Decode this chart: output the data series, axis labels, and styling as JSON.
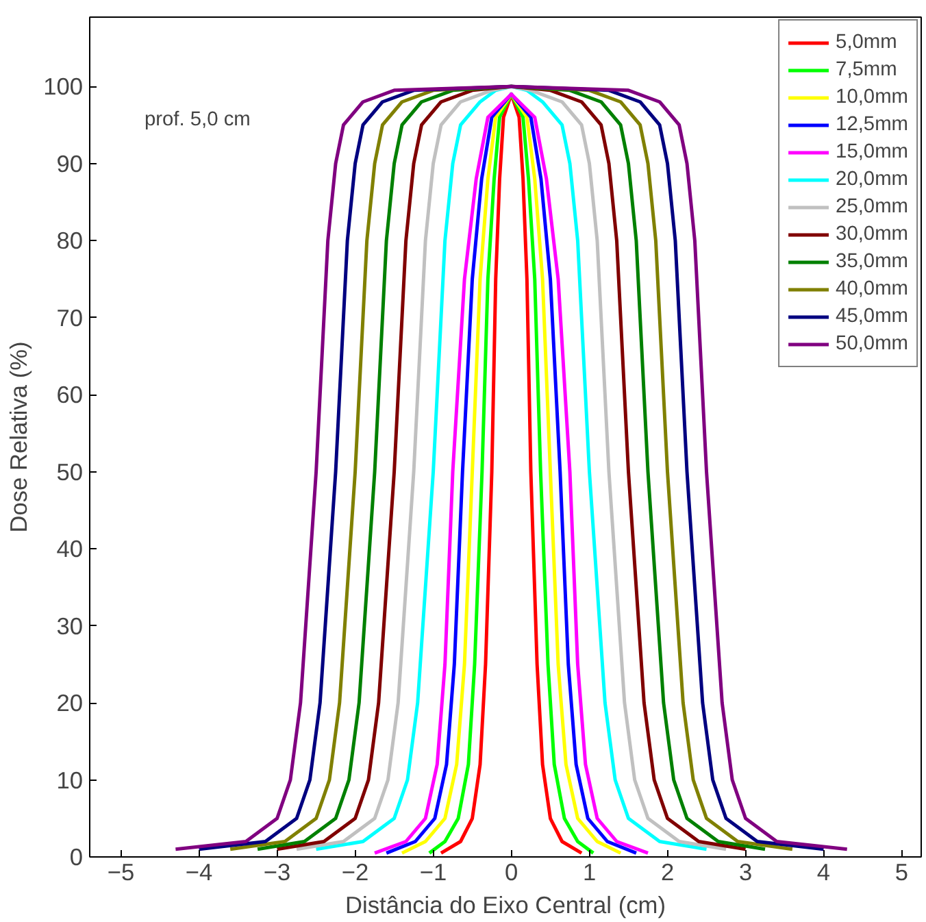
{
  "chart_data": {
    "type": "line",
    "xlabel": "Distância do Eixo Central (cm)",
    "ylabel": "Dose Relativa (%)",
    "annotations": [
      "prof. 5,0 cm"
    ],
    "xlim": [
      -5.4,
      5.25
    ],
    "ylim": [
      0,
      109
    ],
    "xticks": [
      -5,
      -4,
      -3,
      -2,
      -1,
      0,
      1,
      2,
      3,
      4,
      5
    ],
    "yticks": [
      0,
      10,
      20,
      30,
      40,
      50,
      60,
      70,
      80,
      90,
      100
    ],
    "grid": false,
    "legend": "top right",
    "marker": "none",
    "line_style": "solid",
    "series": [
      {
        "name": "5,0mm",
        "color": "#ff0000",
        "x": [
          -0.9,
          -0.65,
          -0.5,
          -0.4,
          -0.33,
          -0.25,
          -0.2,
          -0.15,
          -0.1,
          0,
          0.1,
          0.15,
          0.2,
          0.25,
          0.33,
          0.4,
          0.5,
          0.65,
          0.9
        ],
        "values": [
          0.5,
          2,
          5,
          12,
          25,
          50,
          75,
          88,
          96,
          99,
          96,
          88,
          75,
          50,
          25,
          12,
          5,
          2,
          0.5
        ]
      },
      {
        "name": "7,5mm",
        "color": "#00ff00",
        "x": [
          -1.05,
          -0.85,
          -0.68,
          -0.55,
          -0.47,
          -0.375,
          -0.3,
          -0.22,
          -0.15,
          0,
          0.15,
          0.22,
          0.3,
          0.375,
          0.47,
          0.55,
          0.68,
          0.85,
          1.05
        ],
        "values": [
          0.5,
          2,
          5,
          12,
          25,
          50,
          75,
          88,
          96,
          99,
          96,
          88,
          75,
          50,
          25,
          12,
          5,
          2,
          0.5
        ]
      },
      {
        "name": "10,0mm",
        "color": "#ffff00",
        "x": [
          -1.4,
          -1.1,
          -0.85,
          -0.7,
          -0.6,
          -0.5,
          -0.4,
          -0.3,
          -0.2,
          0,
          0.2,
          0.3,
          0.4,
          0.5,
          0.6,
          0.7,
          0.85,
          1.1,
          1.4
        ],
        "values": [
          0.5,
          2,
          5,
          12,
          25,
          50,
          75,
          88,
          96,
          99,
          96,
          88,
          75,
          50,
          25,
          12,
          5,
          2,
          0.5
        ]
      },
      {
        "name": "12,5mm",
        "color": "#0000ff",
        "x": [
          -1.6,
          -1.23,
          -0.98,
          -0.83,
          -0.73,
          -0.625,
          -0.5,
          -0.38,
          -0.25,
          0,
          0.25,
          0.38,
          0.5,
          0.625,
          0.73,
          0.83,
          0.98,
          1.23,
          1.6
        ],
        "values": [
          0.5,
          2,
          5,
          12,
          25,
          50,
          75,
          88,
          96,
          99,
          96,
          88,
          75,
          50,
          25,
          12,
          5,
          2,
          0.5
        ]
      },
      {
        "name": "15,0mm",
        "color": "#ff00ff",
        "x": [
          -1.75,
          -1.35,
          -1.1,
          -0.95,
          -0.85,
          -0.75,
          -0.6,
          -0.45,
          -0.3,
          0,
          0.3,
          0.45,
          0.6,
          0.75,
          0.85,
          0.95,
          1.1,
          1.35,
          1.75
        ],
        "values": [
          0.5,
          2,
          5,
          12,
          25,
          50,
          75,
          88,
          96,
          99,
          96,
          88,
          75,
          50,
          25,
          12,
          5,
          2,
          0.5
        ]
      },
      {
        "name": "20,0mm",
        "color": "#00ffff",
        "x": [
          -2.5,
          -1.9,
          -1.5,
          -1.33,
          -1.2,
          -1.0,
          -0.85,
          -0.75,
          -0.65,
          -0.4,
          -0.2,
          0,
          0.2,
          0.4,
          0.65,
          0.75,
          0.85,
          1.0,
          1.2,
          1.33,
          1.5,
          1.9,
          2.5
        ],
        "values": [
          1,
          2,
          5,
          10,
          20,
          50,
          80,
          90,
          95,
          98,
          99.5,
          100,
          99.5,
          98,
          95,
          90,
          80,
          50,
          20,
          10,
          5,
          2,
          1
        ]
      },
      {
        "name": "25,0mm",
        "color": "#c0c0c0",
        "x": [
          -2.75,
          -2.15,
          -1.75,
          -1.58,
          -1.45,
          -1.25,
          -1.1,
          -1.0,
          -0.9,
          -0.65,
          -0.25,
          0,
          0.25,
          0.65,
          0.9,
          1.0,
          1.1,
          1.25,
          1.45,
          1.58,
          1.75,
          2.15,
          2.75
        ],
        "values": [
          1,
          2,
          5,
          10,
          20,
          50,
          80,
          90,
          95,
          98,
          99.5,
          100,
          99.5,
          98,
          95,
          90,
          80,
          50,
          20,
          10,
          5,
          2,
          1
        ]
      },
      {
        "name": "30,0mm",
        "color": "#800000",
        "x": [
          -3.0,
          -2.4,
          -2.0,
          -1.83,
          -1.7,
          -1.5,
          -1.35,
          -1.25,
          -1.15,
          -0.9,
          -0.5,
          0,
          0.5,
          0.9,
          1.15,
          1.25,
          1.35,
          1.5,
          1.7,
          1.83,
          2.0,
          2.4,
          3.0
        ],
        "values": [
          1,
          2,
          5,
          10,
          20,
          50,
          80,
          90,
          95,
          98,
          99.5,
          100,
          99.5,
          98,
          95,
          90,
          80,
          50,
          20,
          10,
          5,
          2,
          1
        ]
      },
      {
        "name": "35,0mm",
        "color": "#008000",
        "x": [
          -3.25,
          -2.65,
          -2.25,
          -2.08,
          -1.95,
          -1.75,
          -1.6,
          -1.5,
          -1.4,
          -1.15,
          -0.75,
          0,
          0.75,
          1.15,
          1.4,
          1.5,
          1.6,
          1.75,
          1.95,
          2.08,
          2.25,
          2.65,
          3.25
        ],
        "values": [
          1,
          2,
          5,
          10,
          20,
          50,
          80,
          90,
          95,
          98,
          99.5,
          100,
          99.5,
          98,
          95,
          90,
          80,
          50,
          20,
          10,
          5,
          2,
          1
        ]
      },
      {
        "name": "40,0mm",
        "color": "#808000",
        "x": [
          -3.6,
          -2.9,
          -2.5,
          -2.33,
          -2.2,
          -2.0,
          -1.85,
          -1.75,
          -1.65,
          -1.4,
          -1.0,
          0,
          1.0,
          1.4,
          1.65,
          1.75,
          1.85,
          2.0,
          2.2,
          2.33,
          2.5,
          2.9,
          3.6
        ],
        "values": [
          1,
          2,
          5,
          10,
          20,
          50,
          80,
          90,
          95,
          98,
          99.5,
          100,
          99.5,
          98,
          95,
          90,
          80,
          50,
          20,
          10,
          5,
          2,
          1
        ]
      },
      {
        "name": "45,0mm",
        "color": "#000080",
        "x": [
          -4.0,
          -3.15,
          -2.75,
          -2.58,
          -2.45,
          -2.25,
          -2.1,
          -2.0,
          -1.9,
          -1.65,
          -1.25,
          0,
          1.25,
          1.65,
          1.9,
          2.0,
          2.1,
          2.25,
          2.45,
          2.58,
          2.75,
          3.15,
          4.0
        ],
        "values": [
          1,
          2,
          5,
          10,
          20,
          50,
          80,
          90,
          95,
          98,
          99.5,
          100,
          99.5,
          98,
          95,
          90,
          80,
          50,
          20,
          10,
          5,
          2,
          1
        ]
      },
      {
        "name": "50,0mm",
        "color": "#800080",
        "x": [
          -4.3,
          -3.4,
          -3.0,
          -2.83,
          -2.7,
          -2.5,
          -2.35,
          -2.25,
          -2.15,
          -1.9,
          -1.5,
          0,
          1.5,
          1.9,
          2.15,
          2.25,
          2.35,
          2.5,
          2.7,
          2.83,
          3.0,
          3.4,
          4.3
        ],
        "values": [
          1,
          2,
          5,
          10,
          20,
          50,
          80,
          90,
          95,
          98,
          99.5,
          100,
          99.5,
          98,
          95,
          90,
          80,
          50,
          20,
          10,
          5,
          2,
          1
        ]
      }
    ]
  }
}
